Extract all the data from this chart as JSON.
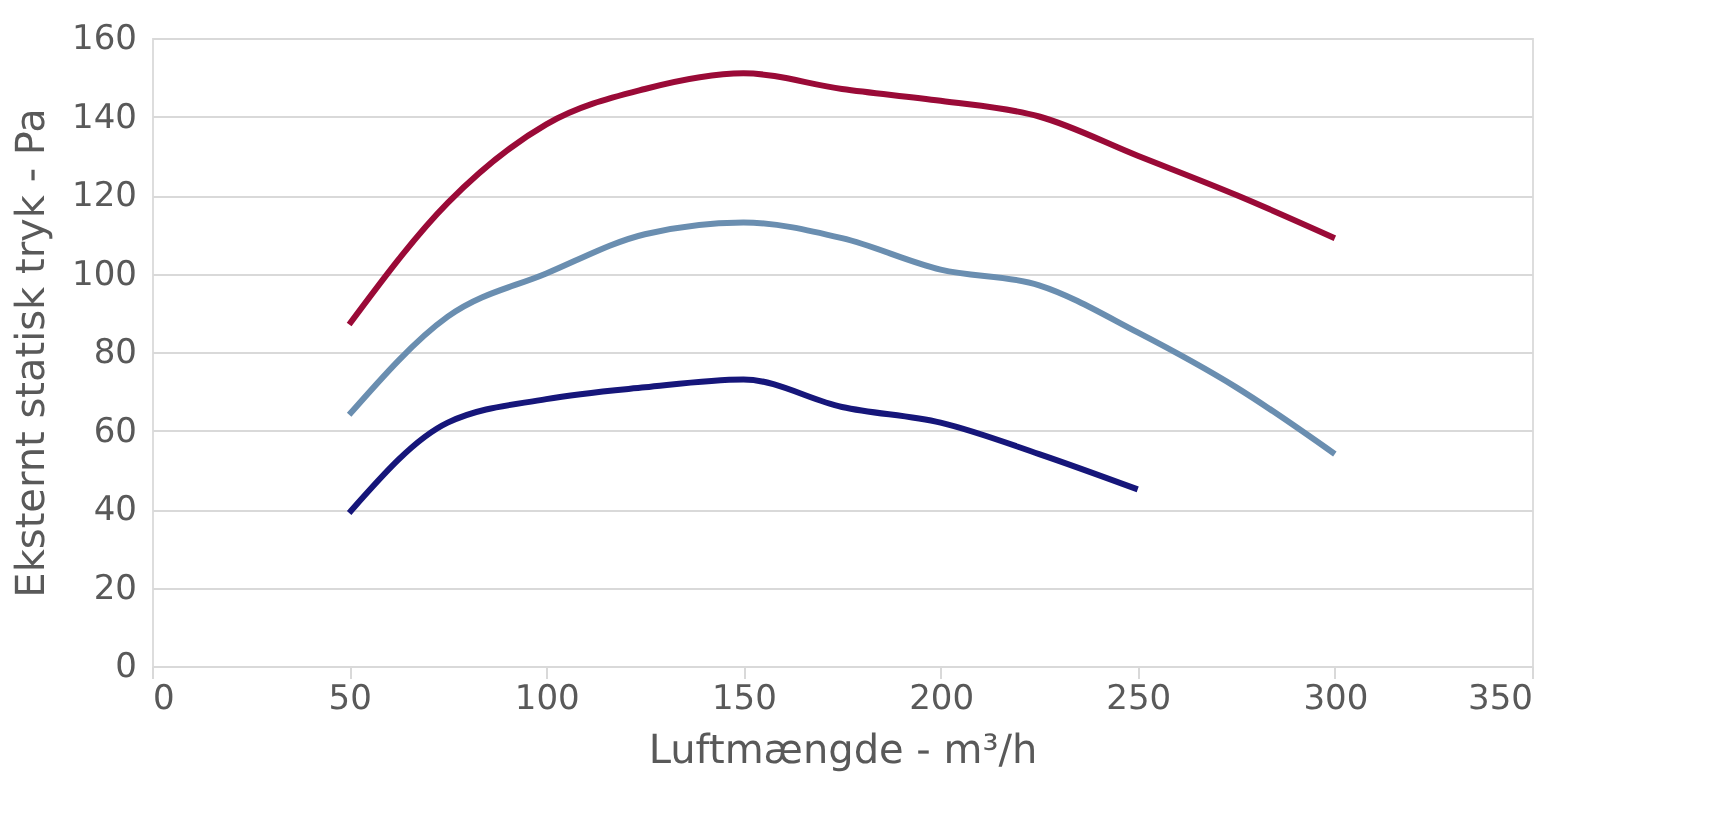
{
  "chart_data": {
    "type": "line",
    "xlabel": "Luftmængde - m³/h",
    "ylabel": "Eksternt statisk tryk - Pa",
    "xlim": [
      0,
      350
    ],
    "xticks": [
      0,
      50,
      100,
      150,
      200,
      250,
      300,
      350
    ],
    "ylim": [
      0,
      160
    ],
    "yticks": [
      0,
      20,
      40,
      60,
      80,
      100,
      120,
      140,
      160
    ],
    "grid": "y",
    "marker": "none",
    "line_style": "solid",
    "series": [
      {
        "color": "#9a0a37",
        "x": [
          50,
          75,
          100,
          125,
          150,
          175,
          200,
          225,
          250,
          275,
          300
        ],
        "values": [
          87,
          118,
          138,
          147,
          151,
          147,
          144,
          140,
          130,
          120,
          109
        ]
      },
      {
        "color": "#6a8eb0",
        "x": [
          50,
          75,
          100,
          125,
          150,
          175,
          200,
          225,
          250,
          275,
          300
        ],
        "values": [
          64,
          89,
          100,
          110,
          113,
          109,
          101,
          97,
          85,
          71,
          54
        ]
      },
      {
        "color": "#16167a",
        "x": [
          50,
          75,
          100,
          125,
          150,
          175,
          200,
          225,
          250
        ],
        "values": [
          39,
          62,
          68,
          71,
          73,
          66,
          62,
          54,
          45
        ]
      }
    ]
  }
}
